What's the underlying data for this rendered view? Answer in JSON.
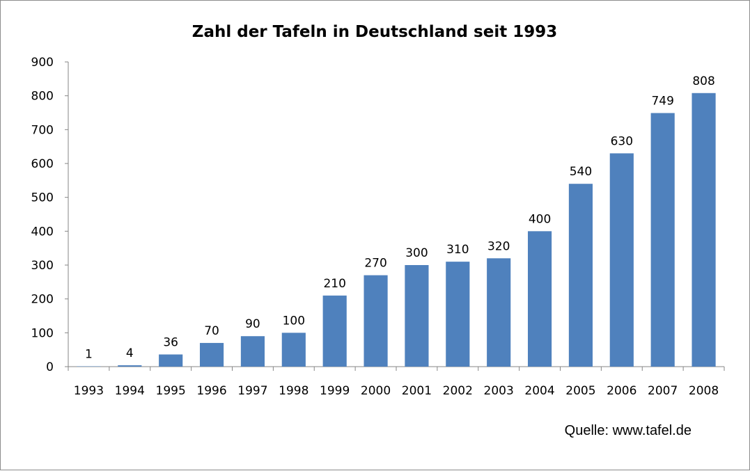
{
  "chart_data": {
    "type": "bar",
    "title": "Zahl der Tafeln in Deutschland seit 1993",
    "categories": [
      "1993",
      "1994",
      "1995",
      "1996",
      "1997",
      "1998",
      "1999",
      "2000",
      "2001",
      "2002",
      "2003",
      "2004",
      "2005",
      "2006",
      "2007",
      "2008"
    ],
    "values": [
      1,
      4,
      36,
      70,
      90,
      100,
      210,
      270,
      300,
      310,
      320,
      400,
      540,
      630,
      749,
      808
    ],
    "ylim": [
      0,
      900
    ],
    "yticks": [
      0,
      100,
      200,
      300,
      400,
      500,
      600,
      700,
      800,
      900
    ],
    "grid": false,
    "legend": "none",
    "bar_color": "#4f81bd",
    "data_labels": true,
    "source_note": "Quelle: www.tafel.de"
  }
}
